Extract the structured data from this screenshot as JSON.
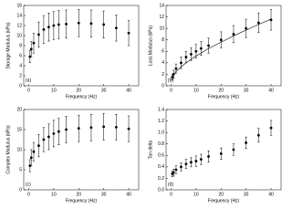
{
  "chart_data": [
    {
      "type": "errorbar",
      "ylabel": "Storage Modulus (kPa)",
      "xlabel": "Frequency (Hz)",
      "panel_label": "(a)",
      "x": [
        0.5,
        1,
        2,
        4,
        6,
        8,
        10,
        12,
        15,
        20,
        25,
        30,
        35,
        40
      ],
      "series": [
        {
          "color": "#000000",
          "values": [
            5.8,
            7.3,
            8.5,
            10.2,
            11.2,
            11.7,
            12.0,
            12.2,
            12.3,
            12.5,
            12.4,
            12.2,
            11.5,
            10.5
          ],
          "errors": [
            1.2,
            1.5,
            2.0,
            2.5,
            2.8,
            2.8,
            2.8,
            2.8,
            2.8,
            2.7,
            2.7,
            2.7,
            2.6,
            2.5
          ]
        }
      ],
      "xlim": [
        -2,
        44
      ],
      "xticks": [
        0,
        10,
        20,
        30,
        40
      ],
      "ylim": [
        0,
        16
      ],
      "yticks": [
        0,
        2,
        4,
        6,
        8,
        10,
        12,
        14,
        16
      ]
    },
    {
      "type": "errorbar",
      "ylabel": "Loss Modulus (kPa)",
      "xlabel": "Frequency (Hz)",
      "panel_label": "(b)",
      "x": [
        0.5,
        1,
        2,
        4,
        6,
        8,
        10,
        12,
        15,
        20,
        25,
        30,
        35,
        40
      ],
      "series": [
        {
          "color": "#000000",
          "values": [
            1.5,
            2.0,
            3.0,
            4.0,
            5.0,
            5.5,
            6.0,
            6.5,
            7.0,
            8.0,
            9.0,
            10.0,
            11.0,
            11.5
          ],
          "errors": [
            0.5,
            0.7,
            0.8,
            1.0,
            1.0,
            1.1,
            1.2,
            1.2,
            1.3,
            1.4,
            1.5,
            1.6,
            1.7,
            1.8
          ]
        },
        {
          "color": "#000000",
          "style": "line",
          "values": [
            1.5,
            1.9,
            2.5,
            3.3,
            4.0,
            4.6,
            5.2,
            5.7,
            6.5,
            7.6,
            8.7,
            9.7,
            10.7,
            11.6
          ]
        }
      ],
      "xlim": [
        -2,
        44
      ],
      "xticks": [
        0,
        10,
        20,
        30,
        40
      ],
      "ylim": [
        0,
        14
      ],
      "yticks": [
        0,
        2,
        4,
        6,
        8,
        10,
        12,
        14
      ]
    },
    {
      "type": "errorbar",
      "ylabel": "Complex Modulus (kPa)",
      "xlabel": "Frequency (Hz)",
      "panel_label": "(c)",
      "x": [
        0.5,
        1,
        2,
        4,
        6,
        8,
        10,
        12,
        15,
        20,
        25,
        30,
        35,
        40
      ],
      "series": [
        {
          "color": "#000000",
          "values": [
            6.0,
            8.0,
            9.5,
            11.0,
            12.5,
            13.2,
            14.0,
            14.5,
            15.0,
            15.3,
            15.5,
            15.7,
            15.6,
            15.2
          ],
          "errors": [
            1.5,
            2.0,
            2.3,
            2.8,
            3.0,
            3.2,
            3.3,
            3.3,
            3.3,
            3.3,
            3.3,
            3.3,
            3.2,
            3.2
          ]
        }
      ],
      "xlim": [
        -2,
        44
      ],
      "xticks": [
        0,
        10,
        20,
        30,
        40
      ],
      "ylim": [
        0,
        20
      ],
      "yticks": [
        0,
        5,
        10,
        15,
        20
      ]
    },
    {
      "type": "errorbar",
      "ylabel": "Tan delta",
      "xlabel": "Frequency (Hz)",
      "panel_label": "(d)",
      "x": [
        0.5,
        1,
        2,
        4,
        6,
        8,
        10,
        12,
        15,
        20,
        25,
        30,
        35,
        40
      ],
      "series": [
        {
          "color": "#000000",
          "values": [
            0.28,
            0.3,
            0.35,
            0.4,
            0.45,
            0.48,
            0.5,
            0.53,
            0.58,
            0.63,
            0.7,
            0.82,
            0.95,
            1.08
          ],
          "errors": [
            0.05,
            0.06,
            0.07,
            0.07,
            0.08,
            0.08,
            0.09,
            0.09,
            0.1,
            0.1,
            0.1,
            0.1,
            0.12,
            0.13
          ]
        }
      ],
      "xlim": [
        -2,
        44
      ],
      "xticks": [
        0,
        10,
        20,
        30,
        40
      ],
      "ylim": [
        0,
        1.4
      ],
      "yticks": [
        {
          "value": 0,
          "label": "0.0"
        },
        0.2,
        0.4,
        0.6,
        0.8,
        {
          "value": 1,
          "label": "1.0"
        },
        1.2,
        1.4
      ]
    }
  ]
}
